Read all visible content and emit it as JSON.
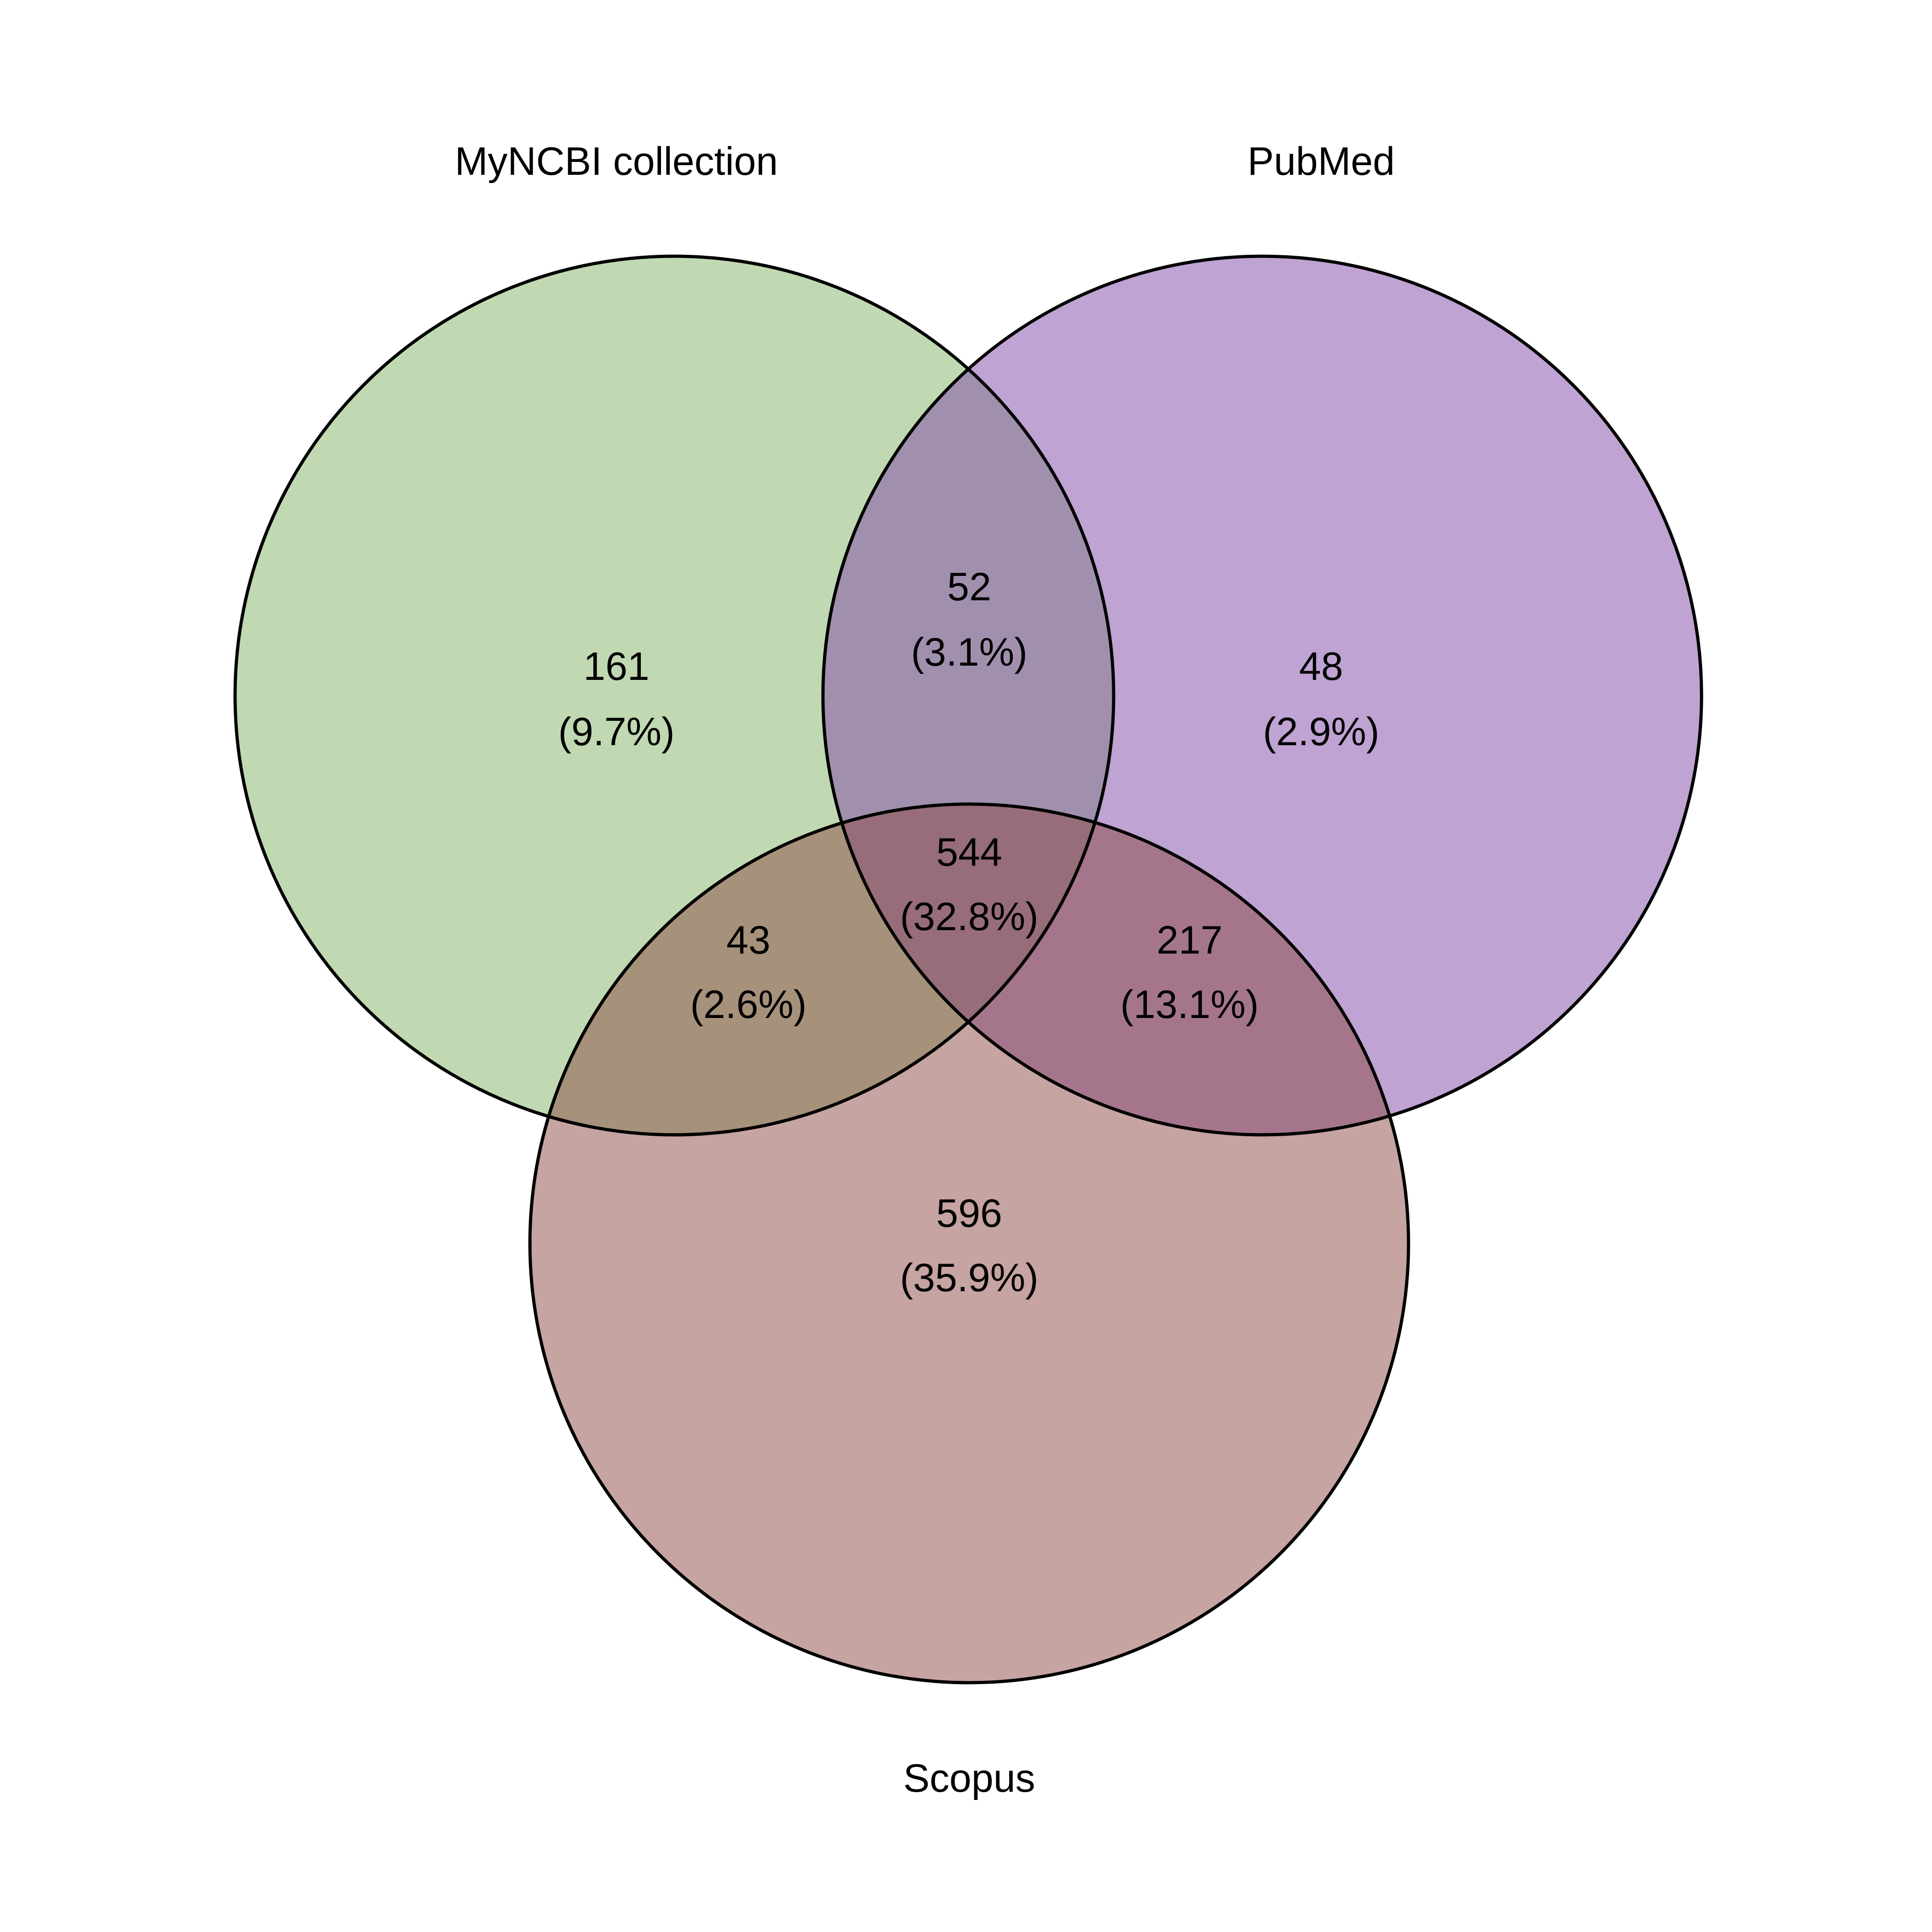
{
  "diagram": {
    "type": "venn-3",
    "sets": [
      {
        "key": "myncbi",
        "label": "MyNCBI collection",
        "color": "#82B366"
      },
      {
        "key": "pubmed",
        "label": "PubMed",
        "color": "#7F48A8"
      },
      {
        "key": "scopus",
        "label": "Scopus",
        "color": "#8B4A44"
      }
    ],
    "fill_opacity": 0.5,
    "regions": {
      "myncbi_only": {
        "count": "161",
        "percent": "(9.7%)"
      },
      "pubmed_only": {
        "count": "48",
        "percent": "(2.9%)"
      },
      "scopus_only": {
        "count": "596",
        "percent": "(35.9%)"
      },
      "myncbi_pubmed": {
        "count": "52",
        "percent": "(3.1%)"
      },
      "myncbi_scopus": {
        "count": "43",
        "percent": "(2.6%)"
      },
      "pubmed_scopus": {
        "count": "217",
        "percent": "(13.1%)"
      },
      "all_three": {
        "count": "544",
        "percent": "(32.8%)"
      }
    }
  }
}
